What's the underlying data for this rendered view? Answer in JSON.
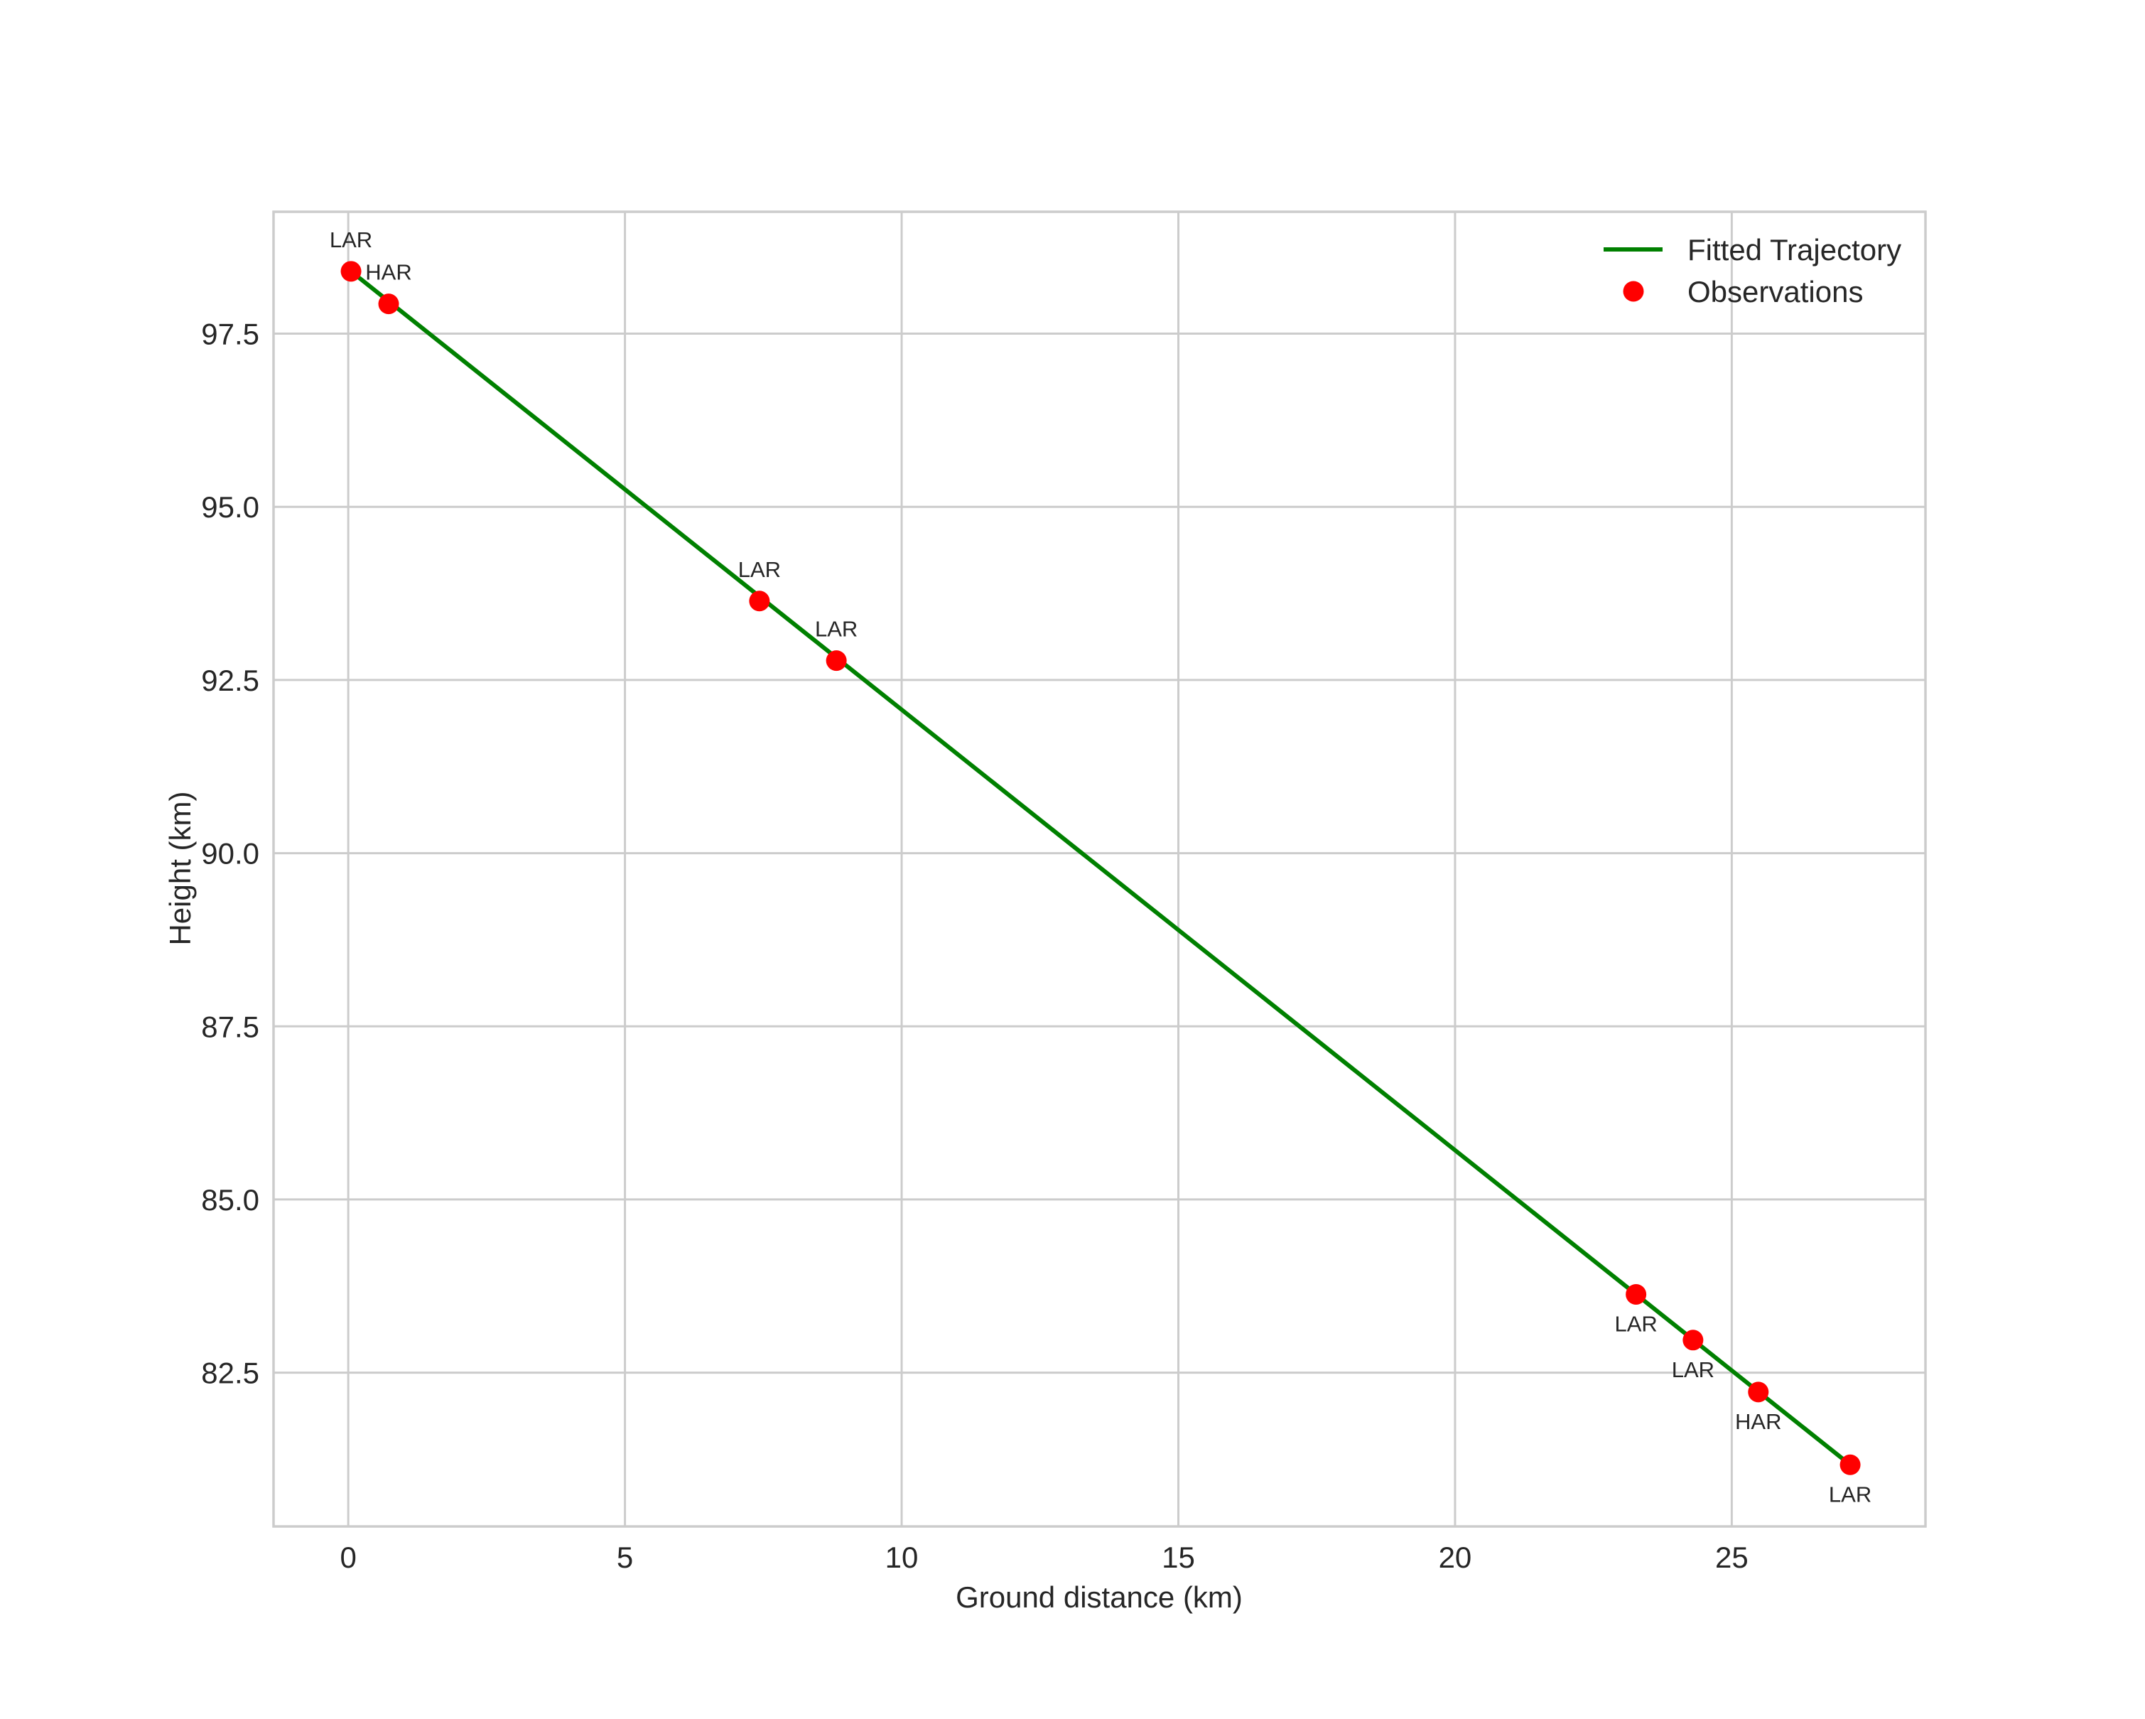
{
  "chart_data": {
    "type": "line",
    "title": "",
    "xlabel": "Ground distance (km)",
    "ylabel": "Height (km)",
    "xlim": [
      -1.35,
      28.5
    ],
    "ylim": [
      80.28,
      99.26
    ],
    "grid": true,
    "legend_position": "upper right",
    "x_ticks": [
      0,
      5,
      10,
      15,
      20,
      25
    ],
    "x_tick_labels": [
      "0",
      "5",
      "10",
      "15",
      "20",
      "25"
    ],
    "y_ticks": [
      82.5,
      85.0,
      87.5,
      90.0,
      92.5,
      95.0,
      97.5
    ],
    "y_tick_labels": [
      "82.5",
      "85.0",
      "87.5",
      "90.0",
      "92.5",
      "95.0",
      "97.5"
    ],
    "series": [
      {
        "name": "Fitted Trajectory",
        "kind": "line",
        "color": "#008000",
        "x": [
          0.05,
          27.14
        ],
        "y": [
          98.4,
          81.17
        ]
      },
      {
        "name": "Observations",
        "kind": "scatter",
        "color": "#ff0000",
        "x": [
          0.05,
          0.73,
          7.43,
          8.82,
          23.27,
          24.3,
          25.48,
          27.14
        ],
        "y": [
          98.4,
          97.93,
          93.64,
          92.78,
          83.63,
          82.97,
          82.22,
          81.17
        ],
        "labels": [
          "LAR",
          "HAR",
          "LAR",
          "LAR",
          "LAR",
          "LAR",
          "HAR",
          "LAR"
        ],
        "label_position": [
          "above",
          "above",
          "above",
          "above",
          "below",
          "below",
          "below",
          "below"
        ]
      }
    ]
  },
  "legend": {
    "items": [
      {
        "label": "Fitted Trajectory",
        "symbol": "line",
        "color": "#008000"
      },
      {
        "label": "Observations",
        "symbol": "dot",
        "color": "#ff0000"
      }
    ]
  },
  "colors": {
    "grid": "#cccccc",
    "text": "#262626",
    "background": "#ffffff"
  }
}
